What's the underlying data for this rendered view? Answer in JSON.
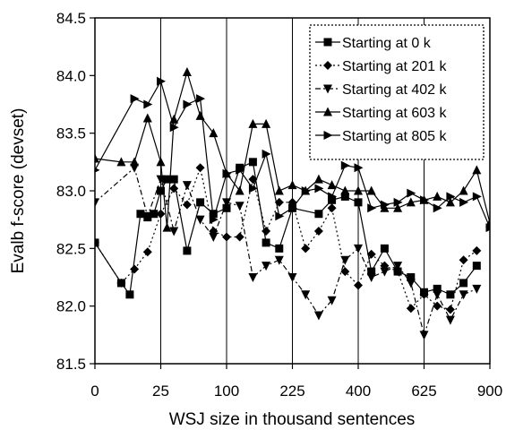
{
  "chart_data": {
    "type": "line",
    "xlabel": "WSJ size in thousand sentences",
    "ylabel": "Evalb f-score (devset)",
    "xlim": [
      0,
      900
    ],
    "ylim": [
      81.5,
      84.5
    ],
    "x_scale": "sqrt",
    "x_ticks": [
      0,
      25,
      100,
      225,
      400,
      625,
      900
    ],
    "y_ticks": [
      81.5,
      82.0,
      82.5,
      83.0,
      83.5,
      84.0,
      84.5
    ],
    "y_tick_labels": [
      "81.5",
      "82.0",
      "82.5",
      "83.0",
      "83.5",
      "84.0",
      "84.5"
    ],
    "grid": "vertical",
    "legend_position": "top-right",
    "series": [
      {
        "name": "Starting at 0 k",
        "marker": "square",
        "line": "solid",
        "points": [
          [
            0,
            82.55
          ],
          [
            4,
            82.2
          ],
          [
            7,
            82.1
          ],
          [
            12,
            82.8
          ],
          [
            16,
            82.77
          ],
          [
            20,
            82.8
          ],
          [
            25,
            83.0
          ],
          [
            30,
            83.1
          ],
          [
            36,
            83.1
          ],
          [
            49,
            82.48
          ],
          [
            64,
            82.9
          ],
          [
            81,
            82.8
          ],
          [
            100,
            82.85
          ],
          [
            121,
            83.2
          ],
          [
            144,
            83.25
          ],
          [
            169,
            82.55
          ],
          [
            196,
            82.5
          ],
          [
            225,
            82.85
          ],
          [
            289,
            82.8
          ],
          [
            324,
            82.92
          ],
          [
            361,
            82.95
          ],
          [
            400,
            82.9
          ],
          [
            441,
            82.3
          ],
          [
            484,
            82.5
          ],
          [
            529,
            82.3
          ],
          [
            576,
            82.25
          ],
          [
            625,
            82.12
          ],
          [
            676,
            82.15
          ],
          [
            729,
            82.1
          ],
          [
            784,
            82.2
          ],
          [
            841,
            82.35
          ]
        ]
      },
      {
        "name": "Starting at 201 k",
        "marker": "diamond",
        "line": "dotted",
        "points": [
          [
            0,
            82.55
          ],
          [
            4,
            82.2
          ],
          [
            9,
            82.32
          ],
          [
            16,
            82.47
          ],
          [
            25,
            82.8
          ],
          [
            36,
            83.02
          ],
          [
            49,
            82.88
          ],
          [
            64,
            83.2
          ],
          [
            81,
            82.65
          ],
          [
            100,
            82.6
          ],
          [
            121,
            82.6
          ],
          [
            144,
            83.1
          ],
          [
            169,
            82.65
          ],
          [
            196,
            82.9
          ],
          [
            225,
            82.9
          ],
          [
            256,
            82.5
          ],
          [
            289,
            82.65
          ],
          [
            324,
            82.85
          ],
          [
            361,
            82.3
          ],
          [
            400,
            82.18
          ],
          [
            441,
            82.45
          ],
          [
            484,
            82.35
          ],
          [
            529,
            82.3
          ],
          [
            576,
            81.98
          ],
          [
            625,
            82.1
          ],
          [
            676,
            82.0
          ],
          [
            729,
            81.97
          ],
          [
            784,
            82.4
          ],
          [
            841,
            82.48
          ]
        ]
      },
      {
        "name": "Starting at 402 k",
        "marker": "triangle-down",
        "line": "dashdot",
        "points": [
          [
            0,
            82.9
          ],
          [
            9,
            83.2
          ],
          [
            16,
            82.78
          ],
          [
            25,
            83.1
          ],
          [
            36,
            82.65
          ],
          [
            49,
            83.05
          ],
          [
            64,
            82.75
          ],
          [
            81,
            82.6
          ],
          [
            100,
            82.9
          ],
          [
            121,
            82.87
          ],
          [
            144,
            82.25
          ],
          [
            169,
            82.35
          ],
          [
            196,
            82.4
          ],
          [
            225,
            82.25
          ],
          [
            256,
            82.1
          ],
          [
            289,
            81.92
          ],
          [
            324,
            82.05
          ],
          [
            361,
            82.4
          ],
          [
            400,
            82.5
          ],
          [
            441,
            82.25
          ],
          [
            484,
            82.3
          ],
          [
            529,
            82.35
          ],
          [
            576,
            82.2
          ],
          [
            625,
            81.75
          ],
          [
            676,
            82.1
          ],
          [
            729,
            81.88
          ],
          [
            784,
            82.1
          ],
          [
            841,
            82.15
          ]
        ]
      },
      {
        "name": "Starting at 603 k",
        "marker": "triangle-up",
        "line": "solid",
        "points": [
          [
            0,
            83.28
          ],
          [
            4,
            83.25
          ],
          [
            9,
            83.25
          ],
          [
            16,
            83.63
          ],
          [
            25,
            83.25
          ],
          [
            30,
            82.68
          ],
          [
            36,
            83.62
          ],
          [
            49,
            84.03
          ],
          [
            64,
            83.65
          ],
          [
            81,
            83.5
          ],
          [
            100,
            83.15
          ],
          [
            121,
            83.0
          ],
          [
            144,
            83.58
          ],
          [
            169,
            83.58
          ],
          [
            196,
            83.0
          ],
          [
            225,
            83.05
          ],
          [
            256,
            83.0
          ],
          [
            289,
            83.1
          ],
          [
            324,
            83.05
          ],
          [
            361,
            83.0
          ],
          [
            400,
            83.0
          ],
          [
            441,
            83.0
          ],
          [
            484,
            82.85
          ],
          [
            529,
            82.85
          ],
          [
            576,
            82.9
          ],
          [
            625,
            82.92
          ],
          [
            676,
            82.95
          ],
          [
            729,
            82.9
          ],
          [
            784,
            83.0
          ],
          [
            841,
            83.18
          ],
          [
            900,
            82.72
          ]
        ]
      },
      {
        "name": "Starting at 805 k",
        "marker": "triangle-right",
        "line": "solid",
        "points": [
          [
            0,
            83.18
          ],
          [
            9,
            83.8
          ],
          [
            16,
            83.75
          ],
          [
            25,
            83.95
          ],
          [
            36,
            83.55
          ],
          [
            49,
            83.75
          ],
          [
            64,
            83.8
          ],
          [
            81,
            82.75
          ],
          [
            100,
            83.15
          ],
          [
            121,
            83.18
          ],
          [
            144,
            83.02
          ],
          [
            169,
            83.32
          ],
          [
            196,
            82.78
          ],
          [
            225,
            82.85
          ],
          [
            256,
            83.0
          ],
          [
            289,
            83.02
          ],
          [
            324,
            82.95
          ],
          [
            361,
            83.22
          ],
          [
            400,
            83.2
          ],
          [
            441,
            82.85
          ],
          [
            484,
            82.88
          ],
          [
            529,
            82.9
          ],
          [
            576,
            82.98
          ],
          [
            625,
            82.92
          ],
          [
            676,
            82.85
          ],
          [
            729,
            82.95
          ],
          [
            784,
            82.9
          ],
          [
            841,
            82.95
          ],
          [
            900,
            82.68
          ]
        ]
      }
    ]
  }
}
